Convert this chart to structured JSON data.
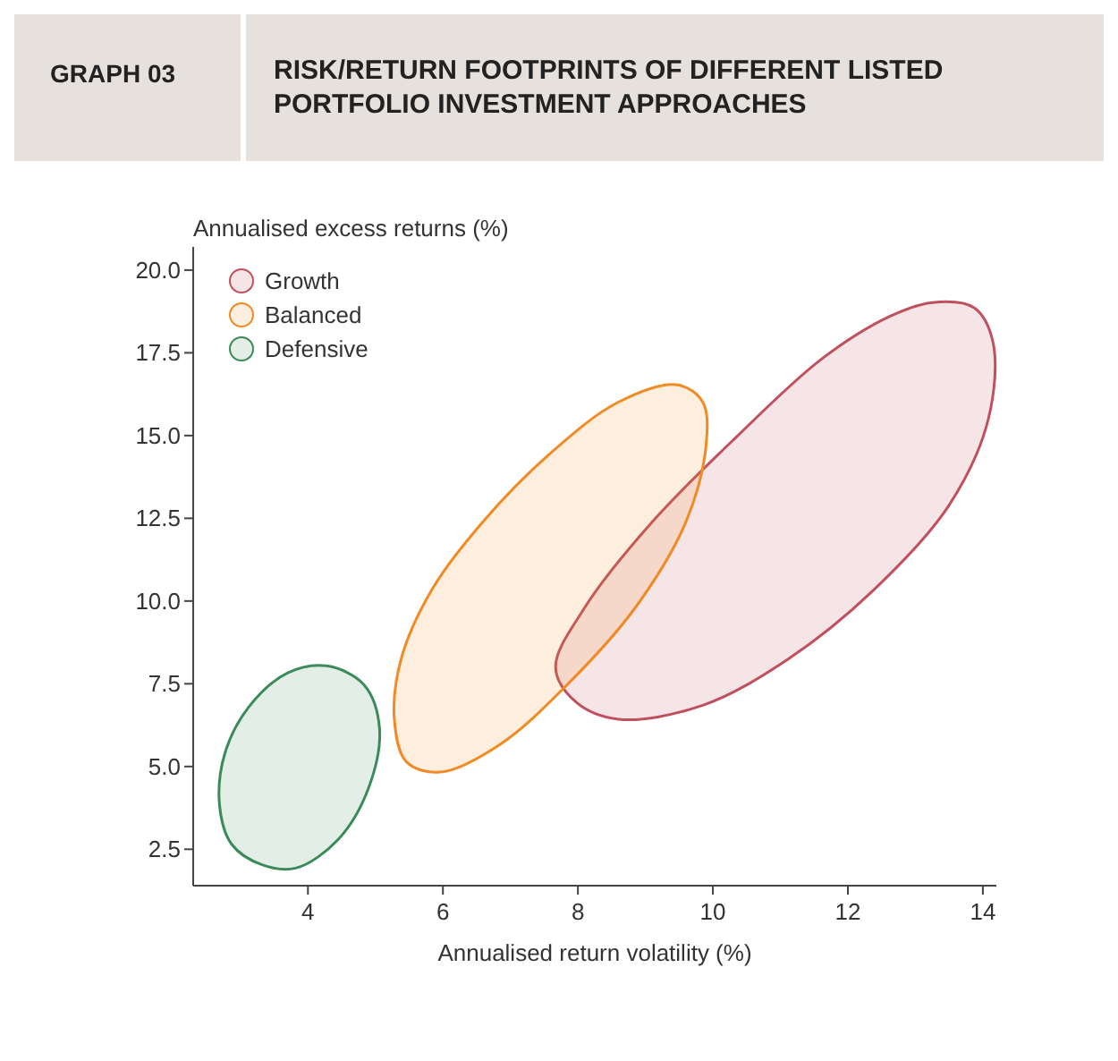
{
  "chart_data": {
    "type": "area",
    "title": "RISK/RETURN FOOTPRINTS OF DIFFERENT LISTED PORTFOLIO INVESTMENT APPROACHES",
    "annotations": [
      "GRAPH 03"
    ],
    "xlabel": "Annualised return volatility (%)",
    "ylabel": "Annualised excess returns (%)",
    "xlim": [
      2.3,
      14.2
    ],
    "ylim": [
      1.4,
      20.7
    ],
    "xticks": [
      4,
      6,
      8,
      10,
      12,
      14
    ],
    "yticks": [
      2.5,
      {
        "value": 5,
        "label": "5.0"
      },
      7.5,
      {
        "value": 10,
        "label": "10.0"
      },
      12.5,
      {
        "value": 15,
        "label": "15.0"
      },
      17.5,
      {
        "value": 20,
        "label": "20.0"
      }
    ],
    "grid": false,
    "legend": "top left",
    "series": [
      {
        "name": "Growth",
        "color": "#c0505e",
        "x": [
          13.25,
          13.87,
          14.15,
          14.08,
          13.5,
          12.37,
          11.11,
          9.85,
          8.6,
          7.97,
          7.67,
          8.1,
          9.1,
          10.36,
          11.61,
          12.62
        ],
        "values": [
          19.02,
          18.86,
          17.82,
          15.49,
          12.9,
          10.31,
          8.24,
          6.85,
          6.43,
          6.95,
          7.99,
          9.8,
          12.39,
          14.98,
          17.31,
          18.6
        ]
      },
      {
        "name": "Balanced",
        "color": "#f08a24",
        "x": [
          9.48,
          9.85,
          9.9,
          9.6,
          8.85,
          7.84,
          6.84,
          5.96,
          5.46,
          5.28,
          5.38,
          5.83,
          6.59,
          7.59,
          8.6
        ],
        "values": [
          16.53,
          16.01,
          14.72,
          12.39,
          9.8,
          7.47,
          5.66,
          4.83,
          5.14,
          6.43,
          8.24,
          10.32,
          12.39,
          14.46,
          16.01
        ]
      },
      {
        "name": "Defensive",
        "color": "#3a8a5a",
        "x": [
          4.28,
          4.83,
          5.06,
          4.9,
          4.45,
          3.82,
          3.32,
          2.87,
          2.69,
          2.77,
          3.12,
          3.7
        ],
        "values": [
          8.04,
          7.47,
          6.17,
          4.36,
          2.8,
          1.93,
          2.03,
          2.65,
          3.84,
          5.4,
          6.79,
          7.83
        ]
      }
    ]
  }
}
